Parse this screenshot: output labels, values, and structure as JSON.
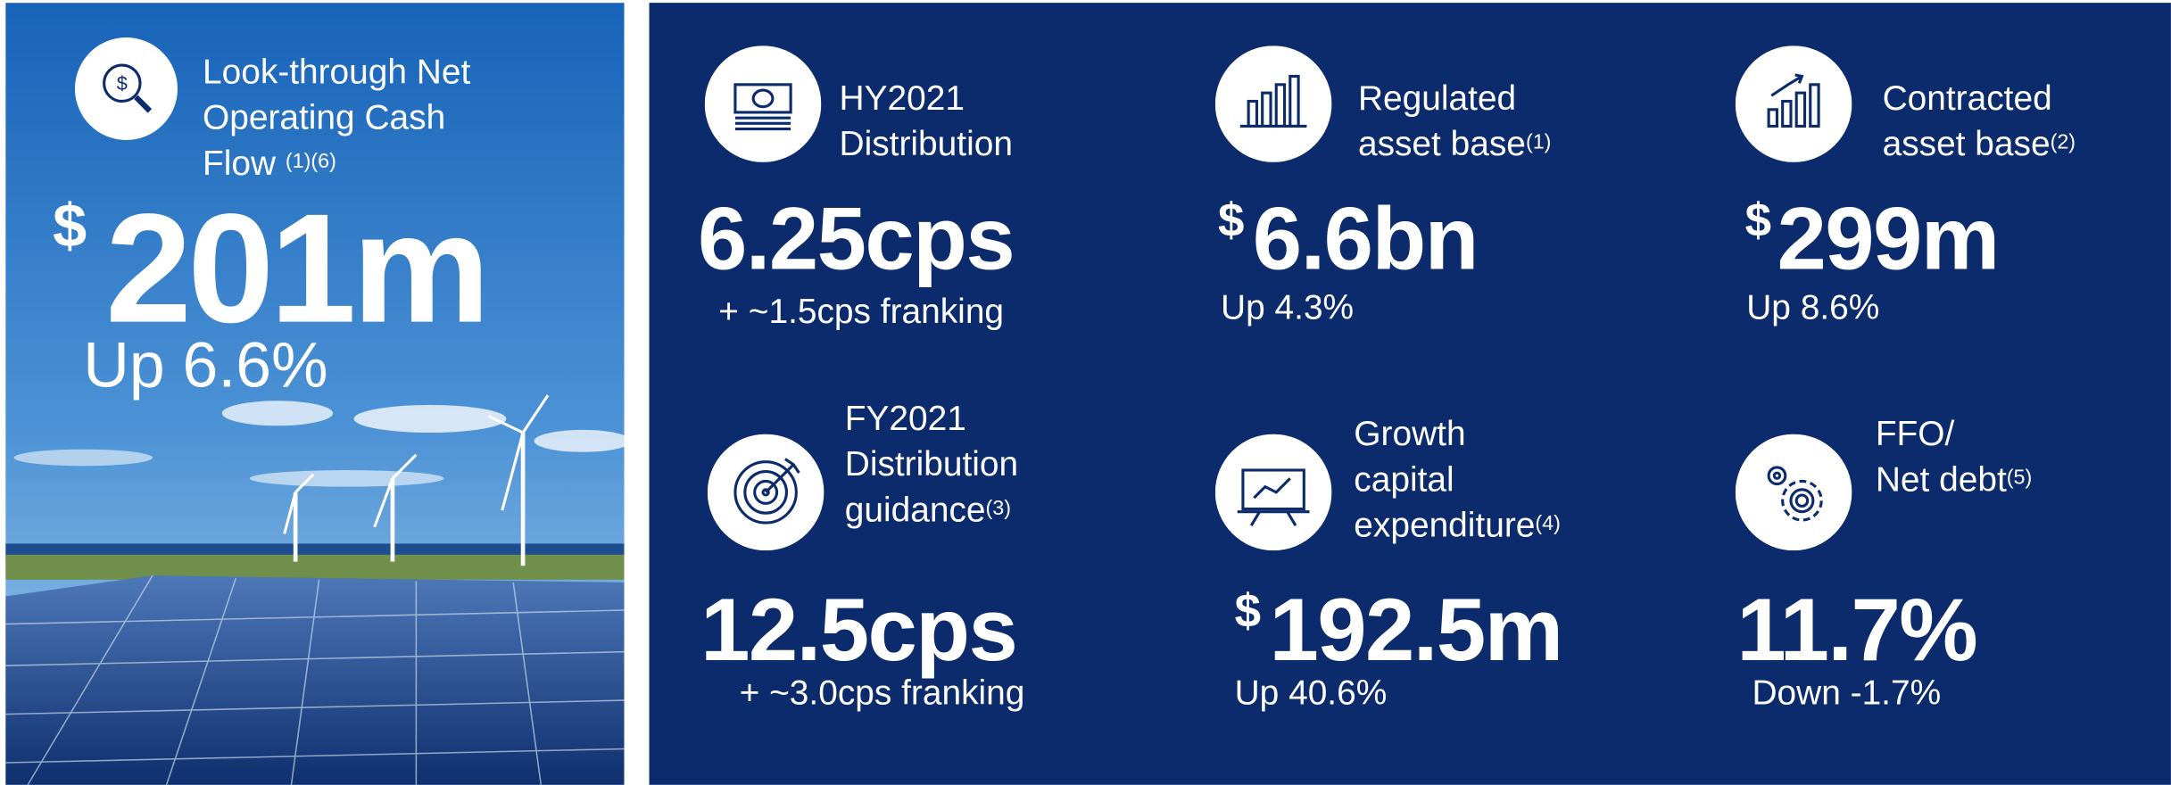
{
  "highlight": {
    "title_lines": [
      "Look-through Net",
      "Operating Cash",
      "Flow"
    ],
    "note": "(1)(6)",
    "currency": "$",
    "value": "201m",
    "change": "Up 6.6%"
  },
  "metrics": [
    {
      "label_lines": [
        "HY2021",
        "Distribution"
      ],
      "note": null,
      "currency": null,
      "value": "6.25cps",
      "sub": "+ ~1.5cps franking"
    },
    {
      "label_lines": [
        "Regulated",
        "asset base"
      ],
      "note": "(1)",
      "currency": "$",
      "value": "6.6bn",
      "sub": "Up 4.3%"
    },
    {
      "label_lines": [
        "Contracted",
        "asset base"
      ],
      "note": "(2)",
      "currency": "$",
      "value": "299m",
      "sub": "Up 8.6%"
    },
    {
      "label_lines": [
        "FY2021",
        "Distribution",
        "guidance"
      ],
      "note": "(3)",
      "currency": null,
      "value": "12.5cps",
      "sub": "+ ~3.0cps franking"
    },
    {
      "label_lines": [
        "Growth",
        "capital",
        "expenditure"
      ],
      "note": "(4)",
      "currency": "$",
      "value": "192.5m",
      "sub": "Up 40.6%"
    },
    {
      "label_lines": [
        "FFO/",
        "Net debt"
      ],
      "note": "(5)",
      "currency": null,
      "value": "11.7%",
      "sub": "Down -1.7%"
    }
  ]
}
